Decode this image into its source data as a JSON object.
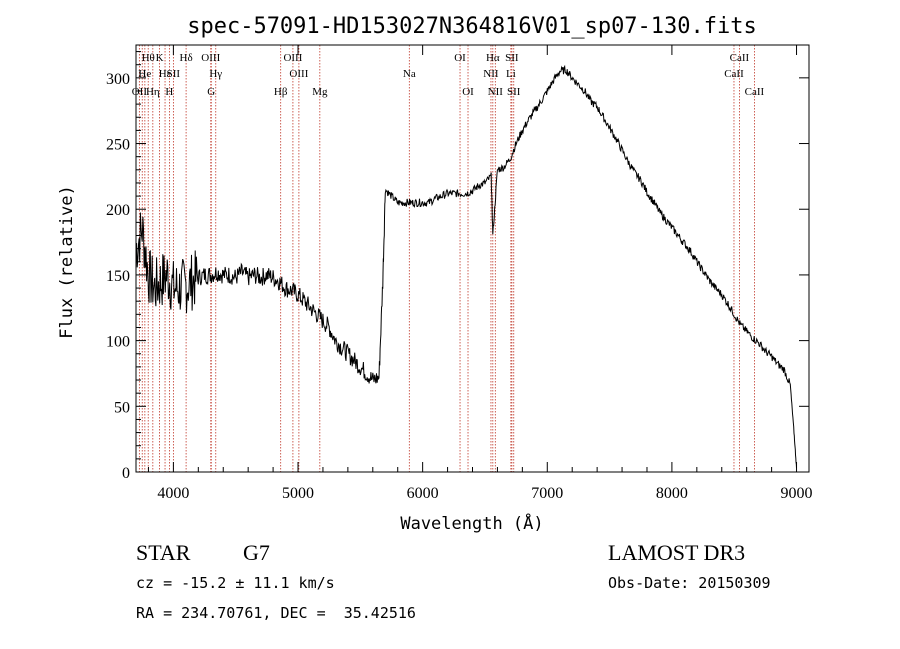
{
  "chart_data": {
    "type": "line",
    "title": "spec-57091-HD153027N364816V01_sp07-130.fits",
    "xlabel": "Wavelength (Å)",
    "ylabel": "Flux (relative)",
    "xlim": [
      3700,
      9100
    ],
    "ylim": [
      0,
      325
    ],
    "xticks": [
      4000,
      5000,
      6000,
      7000,
      8000,
      9000
    ],
    "yticks": [
      0,
      50,
      100,
      150,
      200,
      250,
      300
    ],
    "series": [
      {
        "name": "flux",
        "x": [
          3700,
          3750,
          3800,
          3850,
          3900,
          3950,
          4000,
          4050,
          4100,
          4150,
          4200,
          4250,
          4300,
          4350,
          4400,
          4450,
          4500,
          4550,
          4600,
          4650,
          4700,
          4750,
          4800,
          4850,
          4900,
          4950,
          5000,
          5050,
          5100,
          5150,
          5200,
          5250,
          5300,
          5350,
          5400,
          5450,
          5500,
          5550,
          5600,
          5650,
          5680,
          5700,
          5750,
          5800,
          5850,
          5900,
          5950,
          6000,
          6050,
          6100,
          6150,
          6200,
          6250,
          6300,
          6350,
          6400,
          6450,
          6500,
          6550,
          6563,
          6600,
          6650,
          6700,
          6750,
          6800,
          6850,
          6900,
          6950,
          7000,
          7050,
          7100,
          7150,
          7200,
          7250,
          7300,
          7350,
          7400,
          7450,
          7500,
          7550,
          7600,
          7650,
          7700,
          7750,
          7800,
          7850,
          7900,
          7950,
          8000,
          8050,
          8100,
          8150,
          8200,
          8250,
          8300,
          8350,
          8400,
          8450,
          8500,
          8550,
          8600,
          8650,
          8700,
          8750,
          8800,
          8850,
          8900,
          8950,
          8980,
          9000
        ],
        "y": [
          170,
          185,
          150,
          140,
          145,
          150,
          140,
          140,
          142,
          145,
          148,
          150,
          150,
          152,
          150,
          150,
          148,
          152,
          148,
          150,
          148,
          150,
          148,
          145,
          140,
          138,
          135,
          130,
          125,
          120,
          115,
          110,
          100,
          95,
          90,
          85,
          80,
          75,
          70,
          72,
          145,
          215,
          210,
          205,
          205,
          205,
          205,
          205,
          205,
          208,
          210,
          212,
          212,
          212,
          212,
          214,
          218,
          220,
          225,
          180,
          230,
          232,
          238,
          250,
          260,
          268,
          275,
          282,
          290,
          298,
          305,
          306,
          300,
          295,
          290,
          282,
          278,
          270,
          262,
          254,
          245,
          236,
          228,
          222,
          213,
          206,
          198,
          192,
          186,
          180,
          174,
          168,
          160,
          153,
          146,
          140,
          135,
          128,
          120,
          112,
          107,
          102,
          98,
          92,
          88,
          82,
          78,
          66,
          30,
          3
        ]
      }
    ],
    "lines": [
      {
        "label": "Hθ",
        "x": 3798,
        "row": 1
      },
      {
        "label": "OII",
        "x": 3727,
        "row": 3
      },
      {
        "label": "H",
        "x": 3750,
        "row": 2
      },
      {
        "label": "He",
        "x": 3771,
        "row": 2
      },
      {
        "label": "Hη",
        "x": 3835,
        "row": 3
      },
      {
        "label": "K",
        "x": 3889,
        "row": 1
      },
      {
        "label": "Hε",
        "x": 3933,
        "row": 2
      },
      {
        "label": "H",
        "x": 3968,
        "row": 3
      },
      {
        "label": "SII",
        "x": 4000,
        "row": 2
      },
      {
        "label": "Hδ",
        "x": 4102,
        "row": 1
      },
      {
        "label": "OIII",
        "x": 4300,
        "row": 1
      },
      {
        "label": "Hγ",
        "x": 4340,
        "row": 2
      },
      {
        "label": "G",
        "x": 4304,
        "row": 3
      },
      {
        "label": "Hβ",
        "x": 4861,
        "row": 3
      },
      {
        "label": "OIII",
        "x": 4959,
        "row": 1
      },
      {
        "label": "OIII",
        "x": 5007,
        "row": 2
      },
      {
        "label": "Mg",
        "x": 5175,
        "row": 3
      },
      {
        "label": "Na",
        "x": 5893,
        "row": 2
      },
      {
        "label": "OI",
        "x": 6300,
        "row": 1
      },
      {
        "label": "OI",
        "x": 6364,
        "row": 3
      },
      {
        "label": "Hα",
        "x": 6563,
        "row": 1
      },
      {
        "label": "NII",
        "x": 6548,
        "row": 2
      },
      {
        "label": "NII",
        "x": 6583,
        "row": 3
      },
      {
        "label": "SII",
        "x": 6716,
        "row": 1
      },
      {
        "label": "Li",
        "x": 6708,
        "row": 2
      },
      {
        "label": "SII",
        "x": 6731,
        "row": 3
      },
      {
        "label": "CaII",
        "x": 8542,
        "row": 1
      },
      {
        "label": "CaII",
        "x": 8498,
        "row": 2
      },
      {
        "label": "CaII",
        "x": 8662,
        "row": 3
      }
    ]
  },
  "info": {
    "object_type": "STAR",
    "subclass": "G7",
    "survey": "LAMOST DR3",
    "redshift": "cz = -15.2 ± 11.1 km/s",
    "obs_date": "Obs-Date: 20150309",
    "coords": "RA = 234.70761, DEC =  35.42516"
  }
}
